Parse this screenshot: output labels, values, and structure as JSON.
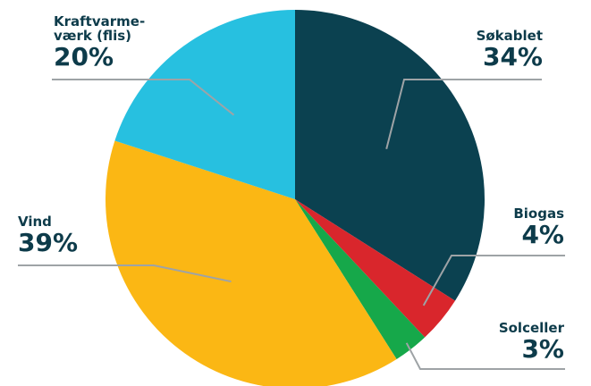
{
  "chart_data": {
    "type": "pie",
    "title": "",
    "start_angle_deg": 0,
    "direction": "clockwise",
    "slices": [
      {
        "name": "Søkablet",
        "label_lines": [
          "Søkablet"
        ],
        "value": 34,
        "value_label": "34%",
        "color": "#0b4150"
      },
      {
        "name": "Biogas",
        "label_lines": [
          "Biogas"
        ],
        "value": 4,
        "value_label": "4%",
        "color": "#d9262c"
      },
      {
        "name": "Solceller",
        "label_lines": [
          "Solceller"
        ],
        "value": 3,
        "value_label": "3%",
        "color": "#16a84a"
      },
      {
        "name": "Vind",
        "label_lines": [
          "Vind"
        ],
        "value": 39,
        "value_label": "39%",
        "color": "#fbb714"
      },
      {
        "name": "Kraftvarmeværk (flis)",
        "label_lines": [
          "Kraftvarme-",
          "værk (flis)"
        ],
        "value": 20,
        "value_label": "20%",
        "color": "#27c0e0"
      }
    ]
  }
}
